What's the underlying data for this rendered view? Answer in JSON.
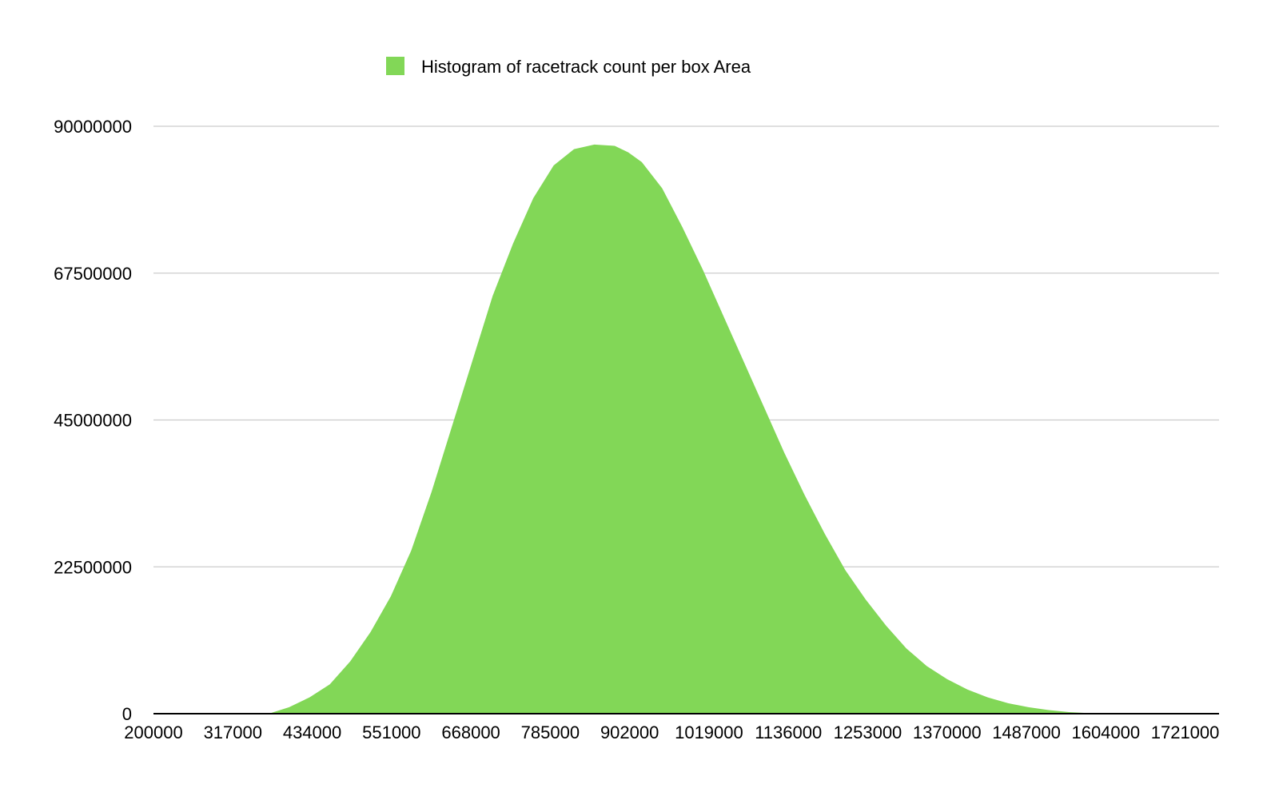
{
  "chart_data": {
    "type": "bar",
    "title": "",
    "xlabel": "",
    "ylabel": "",
    "legend": {
      "position": "top",
      "entries": [
        {
          "name": "Histogram of racetrack count per box Area",
          "color": "#82d757"
        }
      ]
    },
    "grid": true,
    "xlim": [
      200000,
      1771000
    ],
    "ylim": [
      0,
      90000000
    ],
    "x_ticks": [
      "200000",
      "317000",
      "434000",
      "551000",
      "668000",
      "785000",
      "902000",
      "1019000",
      "1136000",
      "1253000",
      "1370000",
      "1487000",
      "1604000",
      "1721000"
    ],
    "y_ticks": [
      "0",
      "22500000",
      "45000000",
      "67500000",
      "90000000"
    ],
    "series": [
      {
        "name": "Histogram of racetrack count per box Area",
        "color": "#82d757",
        "x": [
          370000,
          400000,
          430000,
          460000,
          490000,
          520000,
          550000,
          580000,
          610000,
          640000,
          670000,
          700000,
          730000,
          760000,
          790000,
          820000,
          850000,
          880000,
          900000,
          920000,
          950000,
          980000,
          1010000,
          1040000,
          1070000,
          1100000,
          1130000,
          1160000,
          1190000,
          1220000,
          1250000,
          1280000,
          1310000,
          1340000,
          1370000,
          1400000,
          1430000,
          1460000,
          1490000,
          1520000,
          1550000,
          1580000,
          1600000,
          1620000
        ],
        "values": [
          0,
          1000000,
          2500000,
          4500000,
          8000000,
          12500000,
          18000000,
          25000000,
          34000000,
          44000000,
          54000000,
          64000000,
          72000000,
          79000000,
          84000000,
          86500000,
          87200000,
          87000000,
          86000000,
          84500000,
          80500000,
          74500000,
          68000000,
          61000000,
          54000000,
          47000000,
          40000000,
          33500000,
          27500000,
          22000000,
          17500000,
          13500000,
          10000000,
          7300000,
          5300000,
          3700000,
          2500000,
          1600000,
          1000000,
          550000,
          250000,
          80000,
          20000,
          0
        ]
      }
    ]
  }
}
